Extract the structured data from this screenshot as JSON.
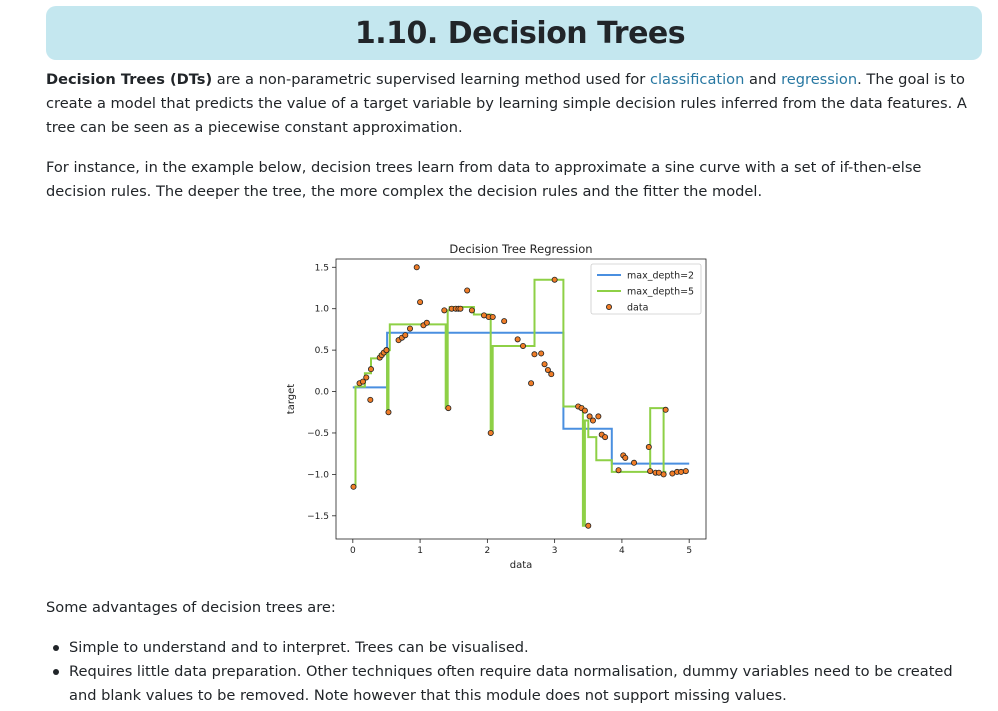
{
  "page": {
    "title": "1.10. Decision Trees",
    "p1": {
      "term": "Decision Trees (DTs)",
      "before_link1": " are a non-parametric supervised learning method used for ",
      "link1": "classification",
      "between_links": " and ",
      "link2": "regression",
      "after_link2": ". The goal is to create a model that predicts the value of a target variable by learning simple decision rules inferred from the data features. A tree can be seen as a piecewise constant approximation."
    },
    "p2": "For instance, in the example below, decision trees learn from data to approximate a sine curve with a set of if-then-else decision rules. The deeper the tree, the more complex the decision rules and the fitter the model.",
    "p3": "Some advantages of decision trees are:",
    "bullets": [
      "Simple to understand and to interpret. Trees can be visualised.",
      "Requires little data preparation. Other techniques often require data normalisation, dummy variables need to be created and blank values to be removed. Note however that this module does not support missing values."
    ]
  },
  "chart_data": {
    "type": "line",
    "title": "Decision Tree Regression",
    "xlabel": "data",
    "ylabel": "target",
    "xlim": [
      -0.25,
      5.25
    ],
    "ylim": [
      -1.78,
      1.6
    ],
    "xticks": [
      0,
      1,
      2,
      3,
      4,
      5
    ],
    "yticks": [
      -1.5,
      -1.0,
      -0.5,
      0.0,
      0.5,
      1.0,
      1.5
    ],
    "ytick_labels": [
      "−1.5",
      "−1.0",
      "−0.5",
      "0.0",
      "0.5",
      "1.0",
      "1.5"
    ],
    "legend_position": "top-right",
    "series": [
      {
        "name": "max_depth=2",
        "color": "#4a8fe0",
        "step_x": [
          0.0,
          0.51,
          0.51,
          3.13,
          3.13,
          3.85,
          3.85,
          5.0
        ],
        "step_y": [
          0.05,
          0.05,
          0.71,
          0.71,
          -0.45,
          -0.45,
          -0.87,
          -0.87
        ]
      },
      {
        "name": "max_depth=5",
        "color": "#8ed046",
        "step_x": [
          0.0,
          0.04,
          0.04,
          0.18,
          0.18,
          0.27,
          0.27,
          0.4,
          0.4,
          0.51,
          0.51,
          0.53,
          0.53,
          0.55,
          0.55,
          1.38,
          1.38,
          1.41,
          1.41,
          1.44,
          1.44,
          1.8,
          1.8,
          2.05,
          2.05,
          2.08,
          2.08,
          2.7,
          2.7,
          3.13,
          3.13,
          3.42,
          3.42,
          3.45,
          3.45,
          3.5,
          3.5,
          3.62,
          3.62,
          3.85,
          3.85,
          4.42,
          4.42,
          4.62,
          4.62,
          4.66,
          4.66,
          5.0
        ],
        "step_y": [
          -1.15,
          -1.15,
          0.06,
          0.06,
          0.22,
          0.22,
          0.4,
          0.4,
          0.45,
          0.45,
          -0.25,
          -0.25,
          0.5,
          0.5,
          0.81,
          0.81,
          -0.2,
          -0.2,
          0.98,
          0.98,
          1.02,
          1.02,
          0.93,
          0.93,
          -0.5,
          -0.5,
          0.55,
          0.55,
          1.35,
          1.35,
          -0.18,
          -0.18,
          -1.62,
          -1.62,
          -0.35,
          -0.35,
          -0.55,
          -0.55,
          -0.83,
          -0.83,
          -0.97,
          -0.97,
          -0.2,
          -0.2,
          -0.97,
          -0.97
        ]
      }
    ],
    "data_series": {
      "name": "data",
      "color": "#f07d28",
      "edgecolor": "#222222",
      "x": [
        0.01,
        0.1,
        0.15,
        0.2,
        0.27,
        0.26,
        0.4,
        0.43,
        0.46,
        0.5,
        0.5,
        0.53,
        0.68,
        0.73,
        0.78,
        0.85,
        0.95,
        1.0,
        1.05,
        1.1,
        1.36,
        1.42,
        1.47,
        1.53,
        1.57,
        1.6,
        1.7,
        1.77,
        1.95,
        2.02,
        2.05,
        2.08,
        2.25,
        2.45,
        2.53,
        2.65,
        2.7,
        2.8,
        2.85,
        2.9,
        2.95,
        3.0,
        3.35,
        3.4,
        3.45,
        3.5,
        3.52,
        3.57,
        3.65,
        3.7,
        3.75,
        3.95,
        4.02,
        4.05,
        4.18,
        4.4,
        4.42,
        4.5,
        4.55,
        4.62,
        4.65,
        4.75,
        4.82,
        4.88,
        4.95
      ],
      "y": [
        -1.15,
        0.1,
        0.12,
        0.17,
        0.27,
        -0.1,
        0.41,
        0.44,
        0.47,
        0.5,
        0.5,
        -0.25,
        0.62,
        0.65,
        0.68,
        0.76,
        1.5,
        1.08,
        0.8,
        0.83,
        0.98,
        -0.2,
        1.0,
        1.0,
        1.0,
        1.0,
        1.22,
        0.98,
        0.92,
        0.9,
        -0.5,
        0.9,
        0.85,
        0.63,
        0.55,
        0.1,
        0.45,
        0.46,
        0.33,
        0.26,
        0.21,
        1.35,
        -0.18,
        -0.2,
        -0.23,
        -1.62,
        -0.3,
        -0.35,
        -0.3,
        -0.52,
        -0.55,
        -0.95,
        -0.77,
        -0.8,
        -0.86,
        -0.67,
        -0.96,
        -0.98,
        -0.98,
        -1.0,
        -0.22,
        -0.99,
        -0.97,
        -0.97,
        -0.96
      ]
    }
  }
}
